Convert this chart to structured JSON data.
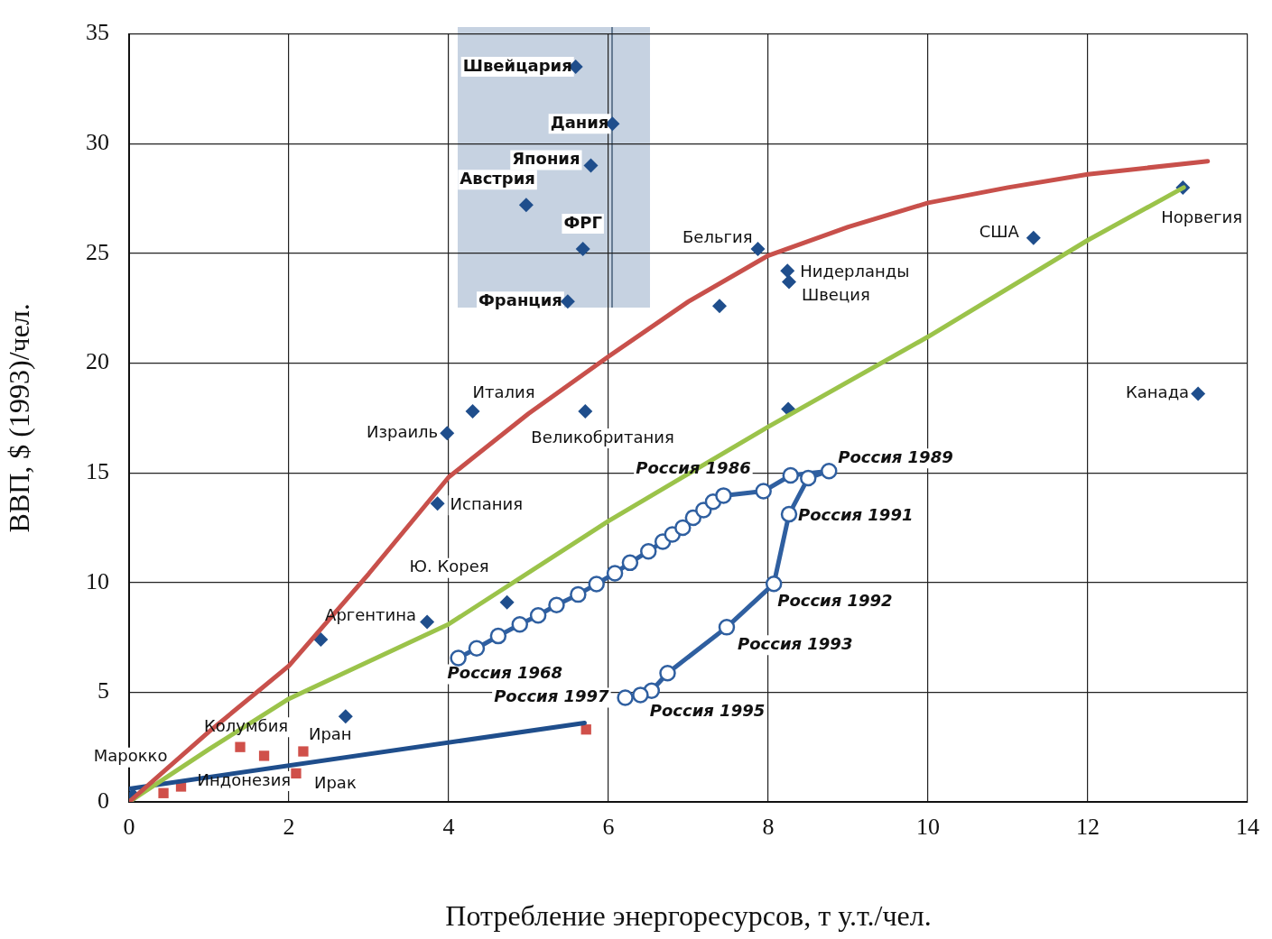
{
  "chart_data": {
    "type": "scatter",
    "xlabel": "Потребление энергоресурсов, т у.т./чел.",
    "ylabel": "ВВП, $ (1993)/чел.",
    "xlim": [
      0,
      14
    ],
    "xticks": [
      0,
      2,
      4,
      6,
      8,
      10,
      12,
      14
    ],
    "ylim": [
      0,
      35
    ],
    "yticks": [
      0,
      5,
      10,
      15,
      20,
      25,
      30,
      35
    ],
    "grid": true,
    "legend": false,
    "series": [
      {
        "type": "line",
        "color": "#c8504b",
        "marker": "none",
        "x": [
          0,
          1,
          2,
          3,
          4,
          5,
          6,
          7,
          8,
          9,
          10,
          11,
          12,
          13.5
        ],
        "values": [
          0,
          3.2,
          6.2,
          10.4,
          14.8,
          17.7,
          20.3,
          22.8,
          24.9,
          26.2,
          27.3,
          28.0,
          28.6,
          29.2
        ]
      },
      {
        "type": "line",
        "color": "#9bc34a",
        "marker": "none",
        "x": [
          0,
          1,
          2,
          4,
          6,
          8,
          10,
          12,
          13.2
        ],
        "values": [
          0,
          2.4,
          4.7,
          8.1,
          12.8,
          17.1,
          21.2,
          25.6,
          28.0
        ]
      },
      {
        "type": "line",
        "color": "#1f4e8c",
        "marker": "none",
        "x": [
          0,
          5.7
        ],
        "values": [
          0.6,
          3.6
        ]
      },
      {
        "type": "scatter",
        "color": "#1f4e8c",
        "marker": "diamond",
        "x": [
          5.59,
          6.05,
          5.78,
          4.97,
          5.68,
          5.49,
          7.87,
          7.39,
          8.24,
          8.26,
          11.32,
          13.19,
          13.38,
          8.25,
          4.3,
          3.98,
          5.71,
          3.86,
          4.73,
          3.73,
          2.4,
          2.71,
          0.05
        ],
        "values": [
          33.5,
          30.9,
          29.0,
          27.2,
          25.2,
          22.8,
          25.2,
          22.6,
          24.2,
          23.7,
          25.7,
          28.0,
          18.6,
          17.9,
          17.8,
          16.8,
          17.8,
          13.6,
          9.1,
          8.2,
          7.4,
          3.9,
          0.3
        ]
      },
      {
        "type": "scatter",
        "color": "#d0504a",
        "marker": "square",
        "x": [
          1.39,
          1.69,
          2.18,
          2.09,
          0.43,
          0.65,
          5.72
        ],
        "values": [
          2.5,
          2.1,
          2.3,
          1.3,
          0.4,
          0.7,
          3.3
        ]
      },
      {
        "type": "line",
        "color": "#2f5fa0",
        "marker": "circle",
        "x": [
          4.12,
          4.35,
          4.62,
          4.89,
          5.12,
          5.35,
          5.62,
          5.85,
          6.08,
          6.27,
          6.5,
          6.68,
          6.8,
          6.93,
          7.06,
          7.19,
          7.31,
          7.44,
          7.94,
          8.28,
          8.76,
          8.5,
          8.26,
          8.07,
          7.48,
          6.74,
          6.54,
          6.4,
          6.21
        ],
        "values": [
          6.56,
          7.0,
          7.56,
          8.09,
          8.5,
          8.97,
          9.45,
          9.93,
          10.42,
          10.9,
          11.42,
          11.86,
          12.19,
          12.5,
          12.95,
          13.3,
          13.68,
          13.96,
          14.16,
          14.88,
          15.08,
          14.76,
          13.11,
          9.94,
          7.96,
          5.87,
          5.07,
          4.87,
          4.75
        ]
      }
    ],
    "annotations": [
      {
        "text": "Швейцария",
        "x": 5.59,
        "y": 33.5
      },
      {
        "text": "Дания",
        "x": 6.05,
        "y": 30.9
      },
      {
        "text": "Япония",
        "x": 5.78,
        "y": 29.0
      },
      {
        "text": "Австрия",
        "x": 4.97,
        "y": 27.2
      },
      {
        "text": "ФРГ",
        "x": 5.68,
        "y": 25.2
      },
      {
        "text": "Франция",
        "x": 5.49,
        "y": 22.8
      },
      {
        "text": "Бельгия",
        "x": 7.87,
        "y": 25.2
      },
      {
        "text": "Нидерланды",
        "x": 8.24,
        "y": 24.2
      },
      {
        "text": "Швеция",
        "x": 8.26,
        "y": 23.7
      },
      {
        "text": "США",
        "x": 11.32,
        "y": 25.7
      },
      {
        "text": "Норвегия",
        "x": 13.19,
        "y": 28.0
      },
      {
        "text": "Канада",
        "x": 13.38,
        "y": 18.6
      },
      {
        "text": "Италия",
        "x": 4.3,
        "y": 17.8
      },
      {
        "text": "Израиль",
        "x": 3.98,
        "y": 16.8
      },
      {
        "text": "Великобритания",
        "x": 5.71,
        "y": 17.8
      },
      {
        "text": "Испания",
        "x": 3.86,
        "y": 13.6
      },
      {
        "text": "Ю. Корея",
        "x": 4.73,
        "y": 9.1
      },
      {
        "text": "Аргентина",
        "x": 3.73,
        "y": 8.2
      },
      {
        "text": "Колумбия",
        "x": 1.39,
        "y": 2.5
      },
      {
        "text": "Иран",
        "x": 2.18,
        "y": 2.3
      },
      {
        "text": "Марокко",
        "x": 0.05,
        "y": 0.3
      },
      {
        "text": "Индонезия",
        "x": 0.65,
        "y": 0.7
      },
      {
        "text": "Ирак",
        "x": 2.09,
        "y": 1.3
      },
      {
        "text": "Россия 1968",
        "x": 4.12,
        "y": 6.56
      },
      {
        "text": "Россия 1986",
        "x": 7.94,
        "y": 14.16
      },
      {
        "text": "Россия 1989",
        "x": 8.76,
        "y": 15.08
      },
      {
        "text": "Россия 1991",
        "x": 8.26,
        "y": 13.11
      },
      {
        "text": "Россия 1992",
        "x": 8.07,
        "y": 9.94
      },
      {
        "text": "Россия 1993",
        "x": 7.48,
        "y": 7.96
      },
      {
        "text": "Россия 1995",
        "x": 6.54,
        "y": 5.07
      },
      {
        "text": "Россия 1997",
        "x": 6.21,
        "y": 4.75
      }
    ]
  }
}
